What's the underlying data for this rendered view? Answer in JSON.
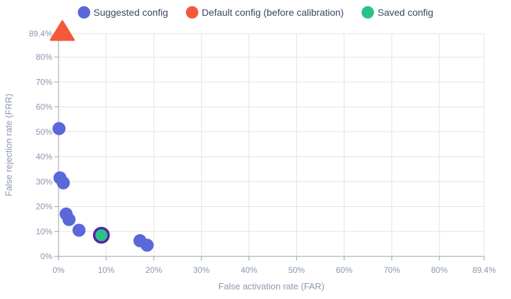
{
  "legend": {
    "items": [
      {
        "id": "suggested",
        "label": "Suggested config",
        "color": "#5b68da"
      },
      {
        "id": "default",
        "label": "Default config (before calibration)",
        "color": "#f4583a"
      },
      {
        "id": "saved",
        "label": "Saved config",
        "color": "#29c287"
      }
    ]
  },
  "chart_data": {
    "type": "scatter",
    "title": "",
    "xlabel": "False activation rate (FAR)",
    "ylabel": "False rejection rate (FRR)",
    "xlim": [
      0,
      89.4
    ],
    "ylim": [
      0,
      89.4
    ],
    "x_ticks": [
      0,
      10,
      20,
      30,
      40,
      50,
      60,
      70,
      80,
      89.4
    ],
    "x_tick_labels": [
      "0%",
      "10%",
      "20%",
      "30%",
      "40%",
      "50%",
      "60%",
      "70%",
      "80%",
      "89.4%"
    ],
    "y_ticks": [
      0,
      10,
      20,
      30,
      40,
      50,
      60,
      70,
      80,
      89.4
    ],
    "y_tick_labels": [
      "0%",
      "10%",
      "20%",
      "30%",
      "40%",
      "50%",
      "60%",
      "70%",
      "80%",
      "89.4%"
    ],
    "grid": true,
    "legend_position": "top",
    "series": [
      {
        "name": "Suggested config",
        "marker": "circle",
        "color": "#5b68da",
        "points": [
          [
            0.1,
            51.3
          ],
          [
            0.3,
            31.5
          ],
          [
            1.0,
            29.5
          ],
          [
            1.6,
            17.0
          ],
          [
            2.2,
            14.8
          ],
          [
            4.3,
            10.5
          ],
          [
            17.1,
            6.3
          ],
          [
            18.6,
            4.5
          ]
        ]
      },
      {
        "name": "Default config (before calibration)",
        "marker": "triangle",
        "color": "#f4583a",
        "points": [
          [
            0.8,
            89.4
          ]
        ]
      },
      {
        "name": "Saved config",
        "marker": "circle-outlined",
        "color": "#29c287",
        "outline_color": "#5b21a8",
        "points": [
          [
            9.0,
            8.5
          ]
        ]
      }
    ]
  },
  "colors": {
    "grid_line": "#e3e3e6",
    "axis_line": "#9aa0aa",
    "tick_label": "#8b97ad",
    "axis_title": "#8b97ad",
    "background": "#ffffff"
  }
}
